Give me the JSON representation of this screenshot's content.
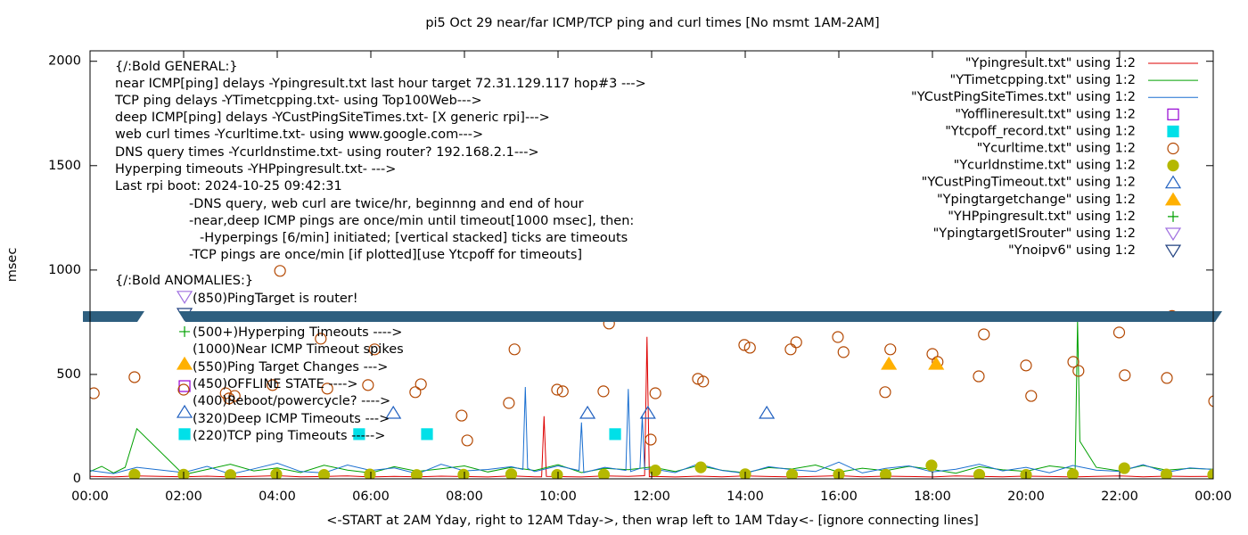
{
  "chart_data": {
    "type": "line",
    "title": "pi5 Oct 29  near/far ICMP/TCP ping and curl times [No msmt 1AM-2AM]",
    "xlabel": "<-START at 2AM Yday, right to 12AM Tday->, then wrap left to 1AM Tday<- [ignore connecting lines]",
    "ylabel": "msec",
    "xlim": [
      0,
      24
    ],
    "ylim": [
      0,
      2050
    ],
    "xticks": [
      {
        "value": 0,
        "label": "00:00"
      },
      {
        "value": 2,
        "label": "02:00"
      },
      {
        "value": 4,
        "label": "04:00"
      },
      {
        "value": 6,
        "label": "06:00"
      },
      {
        "value": 8,
        "label": "08:00"
      },
      {
        "value": 10,
        "label": "10:00"
      },
      {
        "value": 12,
        "label": "12:00"
      },
      {
        "value": 14,
        "label": "14:00"
      },
      {
        "value": 16,
        "label": "16:00"
      },
      {
        "value": 18,
        "label": "18:00"
      },
      {
        "value": 20,
        "label": "20:00"
      },
      {
        "value": 22,
        "label": "22:00"
      },
      {
        "value": 24,
        "label": "00:00"
      }
    ],
    "yticks": [
      0,
      500,
      1000,
      1500,
      2000
    ],
    "legend": "top-right",
    "annotations": [
      "{/:Bold GENERAL:}",
      "near ICMP[ping] delays -Ypingresult.txt last hour target 72.31.129.117 hop#3 --->",
      "TCP ping delays -YTimetcpping.txt- using Top100Web--->",
      "deep ICMP[ping] delays -YCustPingSiteTimes.txt- [X generic rpi]--->",
      "web curl times -Ycurltime.txt- using www.google.com--->",
      "DNS query times -Ycurldnstime.txt- using router? 192.168.2.1--->",
      "Hyperping timeouts -YHPpingresult.txt- --->",
      "Last rpi boot: 2024-10-25 09:42:31",
      "-DNS query, web curl are twice/hr, beginnng and end of hour",
      "-near,deep ICMP pings are once/min until timeout[1000 msec], then:",
      "-Hyperpings [6/min] initiated; [vertical stacked] ticks are timeouts",
      "-TCP pings are once/min [if plotted][use Ytcpoff for timeouts]",
      "{/:Bold ANOMALIES:}",
      "(850)PingTarget is router!",
      "(500+)Hyperping Timeouts ---->",
      "(1000)Near ICMP Timeout spikes",
      "(550)Ping Target Changes --->",
      "(450)OFFLINE STATE ---->",
      "(400)Reboot/powercycle? ---->",
      "(320)Deep ICMP Timeouts --->",
      "(220)TCP ping Timeouts ----->"
    ],
    "series": [
      {
        "name": "\"Ypingresult.txt\" using 1:2",
        "color": "#dd0000",
        "marker": "line",
        "x": [
          0,
          0.5,
          1,
          2,
          2.5,
          3,
          3.5,
          4,
          4.5,
          5,
          5.5,
          6,
          6.5,
          7,
          7.5,
          8,
          8.5,
          9,
          9.5,
          9.65,
          9.7,
          9.75,
          10,
          10.5,
          11,
          11.5,
          11.85,
          11.9,
          11.95,
          12,
          12.5,
          13,
          13.5,
          14,
          14.5,
          15,
          15.5,
          16,
          16.5,
          17,
          17.5,
          18,
          18.5,
          19,
          19.5,
          20,
          20.5,
          21,
          21.5,
          22,
          22.5,
          23,
          23.5,
          24
        ],
        "values": [
          12,
          9,
          14,
          10,
          13,
          9,
          12,
          15,
          10,
          11,
          14,
          9,
          12,
          10,
          13,
          11,
          9,
          14,
          10,
          10,
          300,
          12,
          11,
          9,
          14,
          12,
          15,
          680,
          10,
          12,
          9,
          13,
          10,
          14,
          11,
          9,
          12,
          15,
          10,
          13,
          11,
          9,
          14,
          12,
          10,
          13,
          11,
          9,
          12,
          14,
          10,
          13,
          11,
          12
        ]
      },
      {
        "name": "\"YTimetcpping.txt\" using 1:2",
        "color": "#00a000",
        "marker": "line",
        "x": [
          0,
          0.25,
          0.5,
          0.75,
          1,
          2,
          2.5,
          3,
          3.5,
          4,
          4.5,
          5,
          5.5,
          6,
          6.5,
          7,
          7.5,
          8,
          8.5,
          9,
          9.5,
          10,
          10.5,
          11,
          11.5,
          12,
          12.5,
          13,
          13.5,
          14,
          14.5,
          15,
          15.5,
          16,
          16.5,
          17,
          17.5,
          18,
          18.5,
          19,
          19.5,
          20,
          20.5,
          21,
          21.05,
          21.1,
          21.15,
          21.5,
          22,
          22.5,
          23,
          23.5,
          24
        ],
        "values": [
          35,
          60,
          28,
          55,
          240,
          20,
          45,
          70,
          38,
          52,
          30,
          65,
          42,
          28,
          58,
          36,
          48,
          62,
          33,
          55,
          40,
          68,
          30,
          50,
          44,
          57,
          35,
          63,
          41,
          29,
          54,
          47,
          66,
          32,
          51,
          39,
          60,
          45,
          27,
          58,
          43,
          36,
          62,
          49,
          40,
          760,
          180,
          55,
          38,
          64,
          42,
          50,
          46
        ]
      },
      {
        "name": "\"YCustPingSiteTimes.txt\" using 1:2",
        "color": "#1a6fd0",
        "marker": "line",
        "x": [
          0,
          0.5,
          1,
          2,
          2.5,
          3,
          3.5,
          4,
          4.5,
          5,
          5.5,
          6,
          6.5,
          7,
          7.5,
          8,
          8.5,
          9,
          9.25,
          9.3,
          9.35,
          9.5,
          10,
          10.45,
          10.5,
          10.55,
          11,
          11.45,
          11.5,
          11.55,
          11.75,
          11.8,
          11.85,
          12,
          12.5,
          13,
          13.5,
          14,
          14.5,
          15,
          15.5,
          16,
          16.5,
          17,
          17.5,
          18,
          18.5,
          19,
          19.5,
          20,
          20.5,
          21,
          21.5,
          22,
          22.5,
          23,
          23.5,
          24
        ],
        "values": [
          40,
          25,
          55,
          30,
          60,
          22,
          48,
          75,
          35,
          28,
          66,
          40,
          52,
          24,
          70,
          38,
          45,
          58,
          45,
          440,
          50,
          35,
          62,
          40,
          270,
          30,
          55,
          40,
          430,
          35,
          50,
          300,
          45,
          48,
          30,
          72,
          40,
          26,
          58,
          44,
          35,
          80,
          28,
          50,
          62,
          33,
          46,
          70,
          38,
          55,
          29,
          64,
          42,
          36,
          68,
          31,
          52,
          45
        ]
      },
      {
        "name": "\"Yofflineresult.txt\" using 1:2",
        "color": "#9400d3",
        "marker": "square-open",
        "x": [
          2.02
        ],
        "values": [
          444
        ]
      },
      {
        "name": "\"Ytcpoff_record.txt\" using 1:2",
        "color": "#00e0e8",
        "marker": "square",
        "x": [
          2.02,
          5.75,
          7.2,
          11.22
        ],
        "values": [
          214,
          214,
          214,
          214
        ]
      },
      {
        "name": "\"Ycurltime.txt\" using 1:2",
        "color": "#b34700",
        "marker": "circle-open",
        "x": [
          0.08,
          0.95,
          2.0,
          2.9,
          2.97,
          3.09,
          3.9,
          4.06,
          4.93,
          5.07,
          5.94,
          6.08,
          6.95,
          7.07,
          7.94,
          8.06,
          8.95,
          9.07,
          9.98,
          10.1,
          10.97,
          11.09,
          11.98,
          12.08,
          12.99,
          13.1,
          13.98,
          14.1,
          14.97,
          15.09,
          15.98,
          16.1,
          16.99,
          17.1,
          18.0,
          18.11,
          18.99,
          19.1,
          20.0,
          20.11,
          21.01,
          21.12,
          21.99,
          22.11,
          23.01,
          23.12,
          24.02
        ],
        "values": [
          410,
          487,
          427,
          410,
          385,
          397,
          449,
          996,
          671,
          432,
          449,
          620,
          415,
          453,
          303,
          184,
          363,
          620,
          427,
          419,
          419,
          744,
          188,
          410,
          479,
          466,
          641,
          628,
          620,
          654,
          679,
          607,
          415,
          620,
          598,
          560,
          491,
          692,
          543,
          397,
          560,
          517,
          701,
          496,
          483,
          780,
          372
        ]
      },
      {
        "name": "\"Ycurldnstime.txt\" using 1:2",
        "color": "#b5b800",
        "marker": "circle",
        "x": [
          0.95,
          2.0,
          3.0,
          3.98,
          5.0,
          5.98,
          6.98,
          7.98,
          9.0,
          9.98,
          10.98,
          12.08,
          13.05,
          14.0,
          15.0,
          16.0,
          17.0,
          17.98,
          19.0,
          20.0,
          21.0,
          22.1,
          23.0,
          24.0
        ],
        "values": [
          20,
          20,
          18,
          22,
          19,
          21,
          18,
          20,
          22,
          19,
          20,
          40,
          55,
          22,
          20,
          21,
          20,
          64,
          20,
          19,
          22,
          51,
          21,
          20
        ]
      },
      {
        "name": "\"YCustPingTimeout.txt\" using 1:2",
        "color": "#2060c0",
        "marker": "triangle-open",
        "x": [
          2.02,
          6.48,
          10.63,
          11.92,
          14.46
        ],
        "values": [
          320,
          316,
          316,
          316,
          316
        ]
      },
      {
        "name": "\"Ypingtargetchange\" using 1:2",
        "color": "#ffb000",
        "marker": "triangle",
        "x": [
          2.02,
          17.07,
          18.08
        ],
        "values": [
          551,
          551,
          551
        ]
      },
      {
        "name": "\"YHPpingresult.txt\" using 1:2",
        "color": "#00a000",
        "marker": "plus",
        "x": [
          2.02
        ],
        "values": [
          705
        ]
      },
      {
        "name": "\"YpingtargetISrouter\" using 1:2",
        "color": "#a070e0",
        "marker": "triangle-down-open",
        "x": [
          2.02
        ],
        "values": [
          872
        ]
      },
      {
        "name": "\"Ynoipv6\" using 1:2",
        "color": "#204080",
        "marker": "triangle-down-open",
        "x": [
          2.02
        ],
        "values": [
          790
        ]
      }
    ]
  }
}
